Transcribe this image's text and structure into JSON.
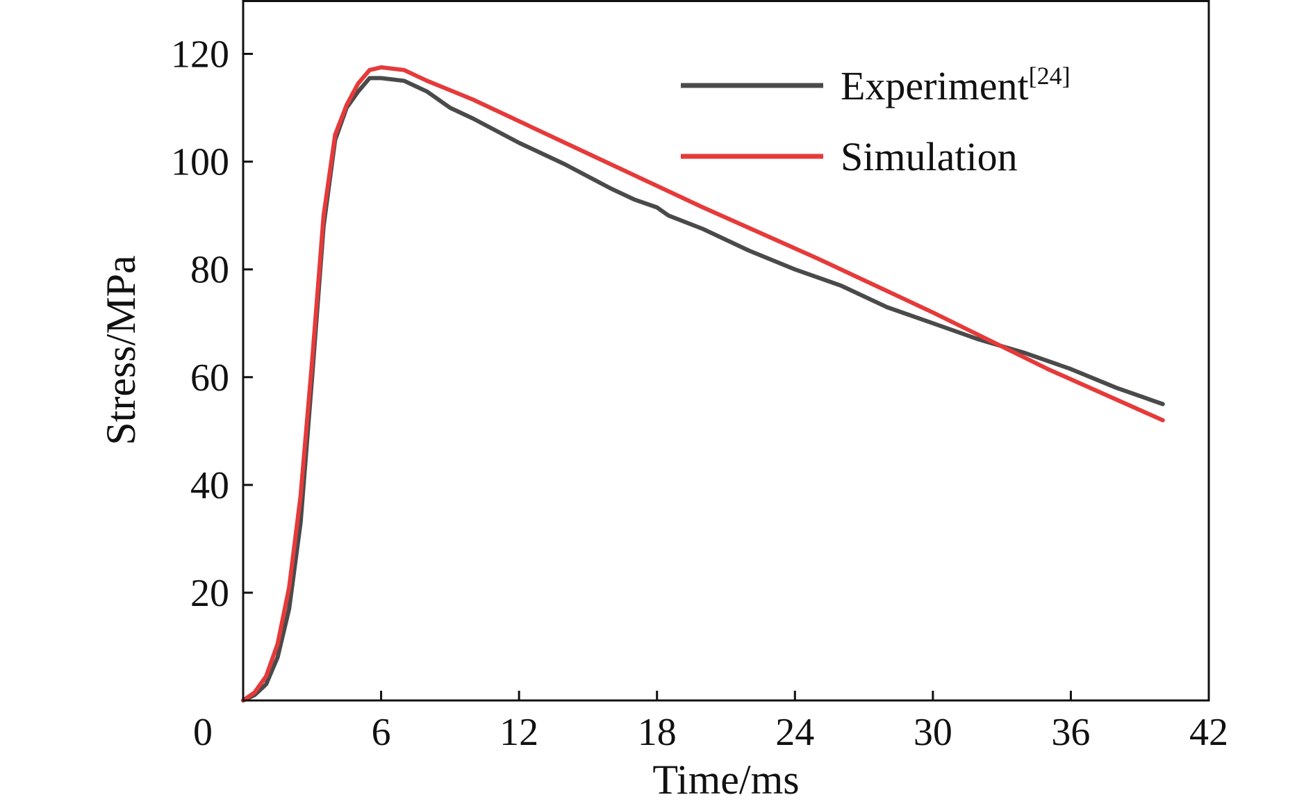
{
  "chart_data": {
    "type": "line",
    "title": "",
    "xlabel": "Time/ms",
    "ylabel": "Stress/MPa",
    "xlim": [
      0,
      42
    ],
    "ylim": [
      0,
      130
    ],
    "xticks": [
      0,
      6,
      12,
      18,
      24,
      30,
      36,
      42
    ],
    "yticks": [
      20,
      40,
      60,
      80,
      100,
      120
    ],
    "grid": false,
    "legend_position": "top-right",
    "series": [
      {
        "name": "Experiment",
        "name_superscript": "[24]",
        "color": "#4a4a4a",
        "x": [
          0,
          0.5,
          1,
          1.5,
          2,
          2.5,
          3,
          3.5,
          4,
          4.5,
          5,
          5.5,
          6,
          7,
          8,
          9,
          10,
          12,
          14,
          16,
          17,
          18,
          18.5,
          20,
          22,
          24,
          26,
          28,
          30,
          32,
          34,
          36,
          38,
          40
        ],
        "y": [
          0,
          1,
          3,
          8,
          17,
          33,
          60,
          88,
          104,
          110,
          113,
          115.5,
          115.5,
          115,
          113,
          110,
          108,
          103.5,
          99.5,
          95,
          93,
          91.5,
          90,
          87.5,
          83.5,
          80,
          77,
          73,
          70,
          67,
          64.5,
          61.5,
          58,
          55
        ]
      },
      {
        "name": "Simulation",
        "color": "#e63a3a",
        "x": [
          0,
          0.5,
          1,
          1.5,
          2,
          2.5,
          3,
          3.5,
          4,
          4.5,
          5,
          5.5,
          6,
          7,
          8,
          10,
          15,
          20,
          25,
          30,
          35,
          40
        ],
        "y": [
          0,
          1.5,
          4.5,
          10.5,
          21,
          38,
          63,
          90,
          105,
          110.5,
          114.5,
          117,
          117.5,
          117,
          115,
          111.5,
          101.5,
          91.5,
          82,
          72,
          61.5,
          52
        ]
      }
    ]
  }
}
